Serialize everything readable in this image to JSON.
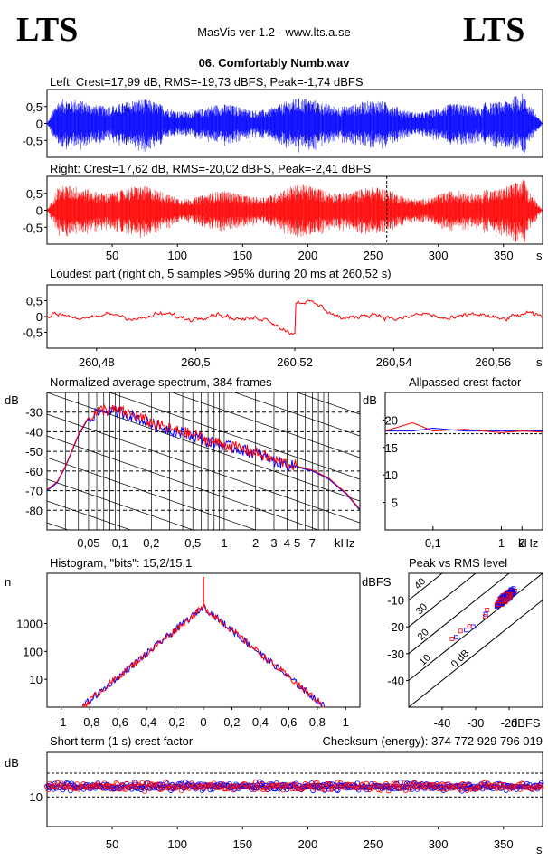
{
  "header": {
    "logo_left": "LTS",
    "logo_right": "LTS",
    "app_title": "MasVis ver 1.2 - www.lts.a.se",
    "file_title": "06. Comfortably Numb.wav"
  },
  "colors": {
    "left": "#0000ff",
    "right": "#ff0000"
  },
  "chart_data": [
    {
      "type": "line",
      "title": "Left: Crest=17,99 dB, RMS=-19,73 dBFS, Peak=-1,74 dBFS",
      "series": [
        {
          "color": "#0000ff",
          "values_desc": "waveform"
        }
      ],
      "ylim": [
        -1,
        1
      ],
      "yticks": [
        0.5,
        0,
        -0.5
      ],
      "ytick_labels": [
        "0,5",
        "0",
        "-0,5"
      ],
      "xlim": [
        0,
        380
      ]
    },
    {
      "type": "line",
      "title": "Right: Crest=17,62 dB, RMS=-20,02 dBFS, Peak=-2,41 dBFS",
      "series": [
        {
          "color": "#ff0000",
          "values_desc": "waveform"
        }
      ],
      "ylim": [
        -1,
        1
      ],
      "yticks": [
        0.5,
        0,
        -0.5
      ],
      "ytick_labels": [
        "0,5",
        "0",
        "-0,5"
      ],
      "xlim": [
        0,
        380
      ],
      "xticks": [
        50,
        100,
        150,
        200,
        250,
        300,
        350
      ],
      "xtick_labels": [
        "50",
        "100",
        "150",
        "200",
        "250",
        "300",
        "350"
      ],
      "xunit": "s",
      "marker_x": 260.52
    },
    {
      "type": "line",
      "title": "Loudest part (right ch, 5 samples >95% during 20 ms at 260,52 s)",
      "ylim": [
        -1,
        1
      ],
      "yticks": [
        0.5,
        0,
        -0.5
      ],
      "ytick_labels": [
        "0,5",
        "0",
        "-0,5"
      ],
      "xlim": [
        260.47,
        260.57
      ],
      "xticks": [
        260.48,
        260.5,
        260.52,
        260.54,
        260.56
      ],
      "xtick_labels": [
        "260,48",
        "260,5",
        "260,52",
        "260,54",
        "260,56"
      ],
      "xunit": "s"
    },
    {
      "type": "line",
      "title": "Normalized average spectrum, 384 frames",
      "ylabel": "dB",
      "ylim": [
        -90,
        -20
      ],
      "yticks": [
        -30,
        -40,
        -50,
        -60,
        -70,
        -80
      ],
      "ytick_labels": [
        "-30",
        "-40",
        "-50",
        "-60",
        "-70",
        "-80"
      ],
      "xscale": "log",
      "xlim": [
        0.02,
        20
      ],
      "xticks": [
        0.05,
        0.1,
        0.2,
        0.5,
        1,
        2,
        3,
        4,
        5,
        7
      ],
      "xtick_labels": [
        "0,05",
        "0,1",
        "0,2",
        "0,5",
        "1",
        "2",
        "3",
        "4",
        "5",
        "7"
      ],
      "xunit": "kHz",
      "spectrum_db": [
        [
          0.02,
          -70
        ],
        [
          0.025,
          -66
        ],
        [
          0.03,
          -58
        ],
        [
          0.04,
          -42
        ],
        [
          0.05,
          -33
        ],
        [
          0.07,
          -29
        ],
        [
          0.1,
          -30
        ],
        [
          0.15,
          -33
        ],
        [
          0.2,
          -36
        ],
        [
          0.3,
          -39
        ],
        [
          0.5,
          -42
        ],
        [
          0.7,
          -45
        ],
        [
          1,
          -47
        ],
        [
          2,
          -51
        ],
        [
          3,
          -55
        ],
        [
          5,
          -58
        ],
        [
          7,
          -60
        ],
        [
          10,
          -64
        ],
        [
          15,
          -72
        ],
        [
          20,
          -80
        ]
      ]
    },
    {
      "type": "line",
      "title": "Allpassed crest factor",
      "ylabel": "dB",
      "ylim": [
        0,
        25
      ],
      "yticks": [
        20,
        15,
        10,
        5
      ],
      "ytick_labels": [
        "20",
        "15",
        "10",
        "5"
      ],
      "xscale": "log",
      "xlim": [
        0.02,
        4
      ],
      "xticks": [
        0.1,
        1,
        2
      ],
      "xtick_labels": [
        "0,1",
        "1",
        "2"
      ],
      "xunit": "kHz",
      "series": [
        {
          "color": "#0000ff",
          "points": [
            [
              0.02,
              18
            ],
            [
              0.05,
              18
            ],
            [
              0.1,
              18.5
            ],
            [
              0.3,
              18
            ],
            [
              1,
              18
            ],
            [
              2,
              18
            ],
            [
              4,
              18
            ]
          ]
        },
        {
          "color": "#ff0000",
          "points": [
            [
              0.02,
              18
            ],
            [
              0.05,
              19.5
            ],
            [
              0.1,
              18
            ],
            [
              0.3,
              18.3
            ],
            [
              1,
              17.7
            ],
            [
              2,
              18
            ],
            [
              4,
              17.8
            ]
          ]
        }
      ]
    },
    {
      "type": "line",
      "title": "Histogram, \"bits\": 15,2/15,1",
      "ylabel": "n",
      "yscale": "log",
      "yticks": [
        1000,
        100,
        10
      ],
      "ytick_labels": [
        "1000",
        "100",
        "10"
      ],
      "xlim": [
        -1.1,
        1.1
      ],
      "xticks": [
        -1,
        -0.8,
        -0.6,
        -0.4,
        -0.2,
        0,
        0.2,
        0.4,
        0.6,
        0.8,
        1
      ],
      "xtick_labels": [
        "-1",
        "-0,8",
        "-0,6",
        "-0,4",
        "-0,2",
        "0",
        "0,2",
        "0,4",
        "0,6",
        "0,8",
        "1"
      ]
    },
    {
      "type": "scatter",
      "title": "Peak vs RMS level",
      "ylabel": "dBFS",
      "xlabel": "dBFS",
      "xlim": [
        -50,
        -10
      ],
      "ylim": [
        -50,
        0
      ],
      "yticks": [
        -10,
        -20,
        -30,
        -40
      ],
      "ytick_labels": [
        "-10",
        "-20",
        "-30",
        "-40"
      ],
      "xticks": [
        -40,
        -30,
        -20
      ],
      "xtick_labels": [
        "-40",
        "-30",
        "-20"
      ],
      "crest_lines": [
        "40",
        "30",
        "20",
        "10",
        "0 dB"
      ]
    },
    {
      "type": "scatter",
      "title": "Short term (1 s) crest factor",
      "checksum": "Checksum (energy):   374 772 929 796 019",
      "ylabel": "dB",
      "yticks": [
        10
      ],
      "ytick_labels": [
        "10"
      ],
      "xlim": [
        0,
        380
      ],
      "xticks": [
        50,
        100,
        150,
        200,
        250,
        300,
        350
      ],
      "xtick_labels": [
        "50",
        "100",
        "150",
        "200",
        "250",
        "300",
        "350"
      ],
      "xunit": "s"
    }
  ]
}
